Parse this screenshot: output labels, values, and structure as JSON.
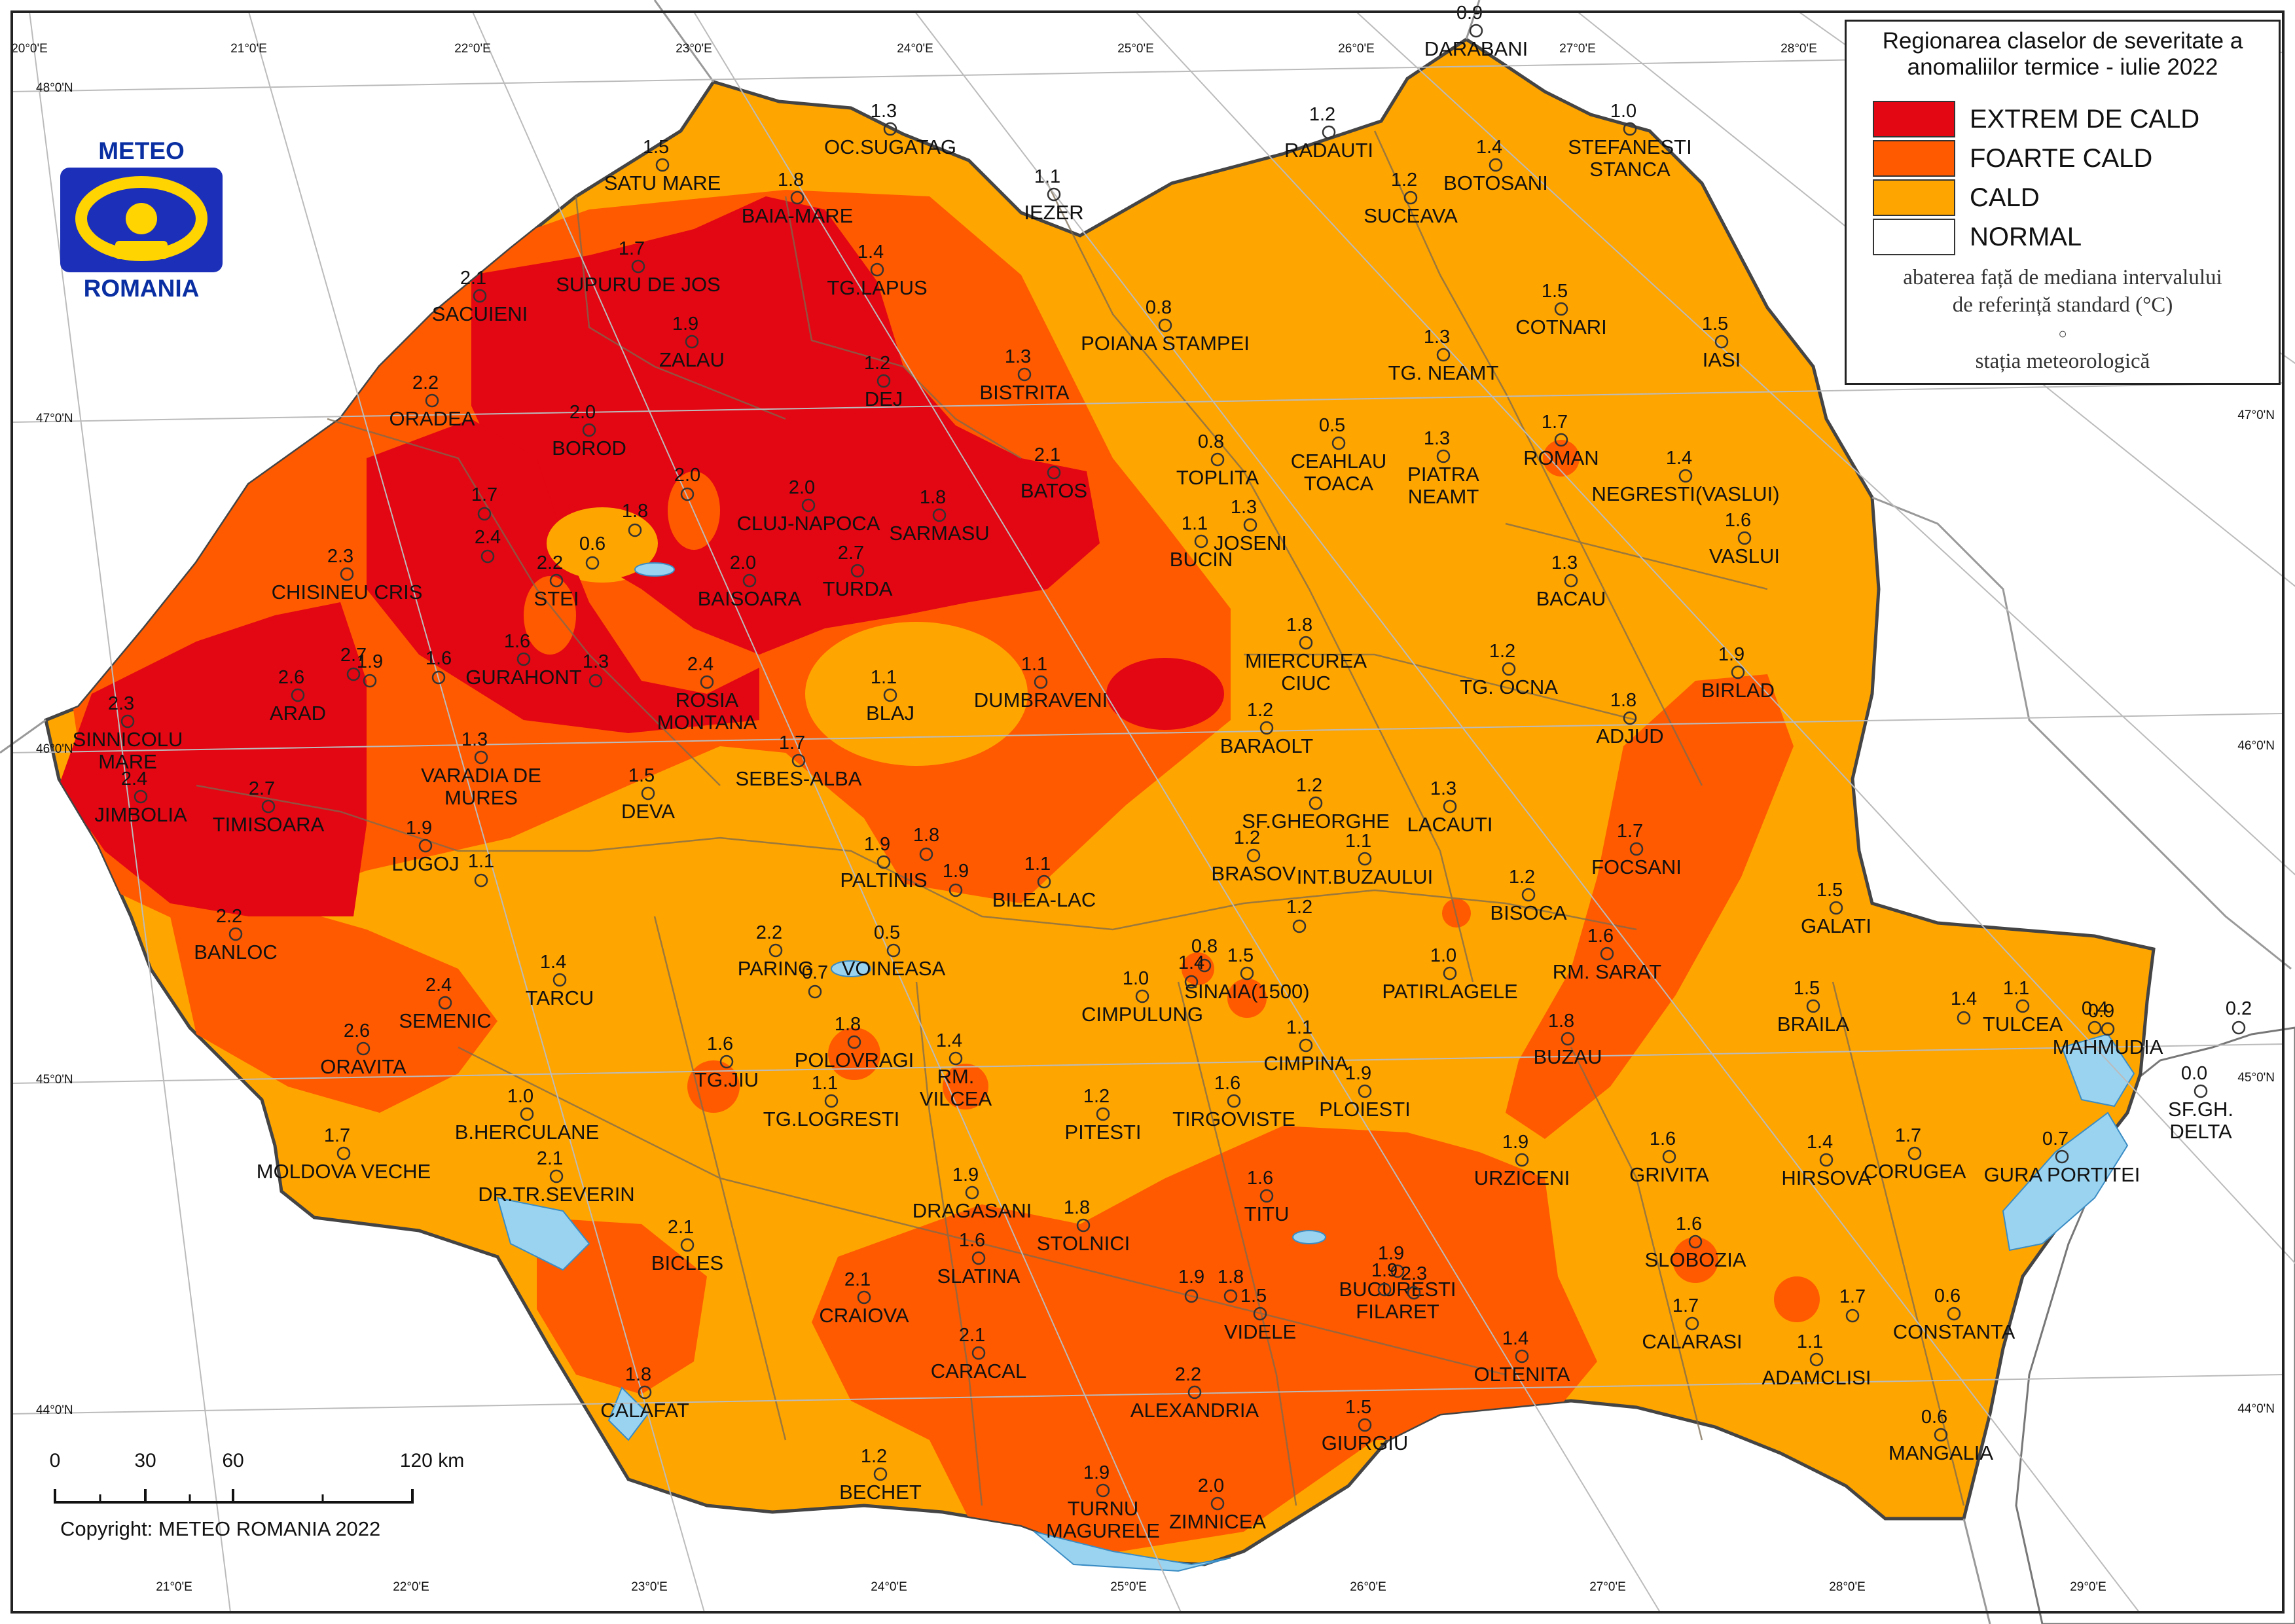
{
  "legend": {
    "title_line1": "Regionarea claselor de severitate a",
    "title_line2": "anomaliilor termice - iulie 2022",
    "classes": [
      {
        "label": "EXTREM DE CALD",
        "color": "#e30613"
      },
      {
        "label": "FOARTE CALD",
        "color": "#ff5a00"
      },
      {
        "label": "CALD",
        "color": "#ffa500"
      },
      {
        "label": "NORMAL",
        "color": "#ffffff"
      }
    ],
    "note_line1": "abaterea față de mediana intervalului",
    "note_line2": "de referință standard (°C)",
    "station_symbol": "○",
    "station_label": "stația meteorologică"
  },
  "logo": {
    "top": "METEO",
    "bottom": "ROMANIA",
    "icon": "meteo-romania-logo-icon"
  },
  "scale": {
    "ticks": [
      "0",
      "30",
      "60",
      "120 km"
    ]
  },
  "copyright": "Copyright: METEO ROMANIA 2022",
  "graticule": {
    "top": [
      "20°0'E",
      "21°0'E",
      "22°0'E",
      "23°0'E",
      "24°0'E",
      "25°0'E",
      "26°0'E",
      "27°0'E",
      "28°0'E"
    ],
    "bottom": [
      "21°0'E",
      "22°0'E",
      "23°0'E",
      "24°0'E",
      "25°0'E",
      "26°0'E",
      "27°0'E",
      "28°0'E",
      "29°0'E"
    ],
    "left": [
      "48°0'N",
      "47°0'N",
      "46°0'N",
      "45°0'N",
      "44°0'N"
    ],
    "right": [
      "47°0'N",
      "46°0'N",
      "45°0'N",
      "44°0'N"
    ]
  },
  "stations": [
    {
      "name": "DARABANI",
      "value": "0.9"
    },
    {
      "name": "STEFANESTI STANCA",
      "value": "1.0"
    },
    {
      "name": "RADAUTI",
      "value": "1.2"
    },
    {
      "name": "BOTOSANI",
      "value": "1.4"
    },
    {
      "name": "SUCEAVA",
      "value": "1.2"
    },
    {
      "name": "IEZER",
      "value": "1.1"
    },
    {
      "name": "OC.SUGATAG",
      "value": "1.3"
    },
    {
      "name": "SATU MARE",
      "value": "1.5"
    },
    {
      "name": "BAIA-MARE",
      "value": "1.8"
    },
    {
      "name": "SUPURU DE JOS",
      "value": "1.7"
    },
    {
      "name": "TG.LAPUS",
      "value": "1.4"
    },
    {
      "name": "SACUIENI",
      "value": "2.1"
    },
    {
      "name": "ZALAU",
      "value": "1.9"
    },
    {
      "name": "COTNARI",
      "value": "1.5"
    },
    {
      "name": "IASI",
      "value": "1.5"
    },
    {
      "name": "POIANA STAMPEI",
      "value": "0.8"
    },
    {
      "name": "TG. NEAMT",
      "value": "1.3"
    },
    {
      "name": "ORADEA",
      "value": "2.2"
    },
    {
      "name": "DEJ",
      "value": "1.2"
    },
    {
      "name": "BISTRITA",
      "value": "1.3"
    },
    {
      "name": "BOROD",
      "value": "2.0"
    },
    {
      "name": "TOPLITA",
      "value": "0.8"
    },
    {
      "name": "CEAHLAU TOACA",
      "value": "0.5"
    },
    {
      "name": "PIATRA NEAMT",
      "value": "1.3"
    },
    {
      "name": "ROMAN",
      "value": "1.7"
    },
    {
      "name": "NEGRESTI(VASLUI)",
      "value": "1.4"
    },
    {
      "name": "VASLUI",
      "value": "1.6"
    },
    {
      "name": "BATOS",
      "value": "2.1"
    },
    {
      "name": "CLUJ-NAPOCA",
      "value": "2.0"
    },
    {
      "name": "SARMASU",
      "value": "1.8"
    },
    {
      "name": "BUCIN",
      "value": "1.1"
    },
    {
      "name": "JOSENI",
      "value": "1.3"
    },
    {
      "name": "TURDA",
      "value": "2.7"
    },
    {
      "name": "BAISOARA",
      "value": "2.0"
    },
    {
      "name": "STEI",
      "value": "2.2"
    },
    {
      "name": "CHISINEU CRIS",
      "value": "2.3"
    },
    {
      "name": "BACAU",
      "value": "1.3"
    },
    {
      "name": "MIERCUREA CIUC",
      "value": "1.8"
    },
    {
      "name": "TG. OCNA",
      "value": "1.2"
    },
    {
      "name": "BIRLAD",
      "value": "1.9"
    },
    {
      "name": "ADJUD",
      "value": "1.8"
    },
    {
      "name": "GURAHONT",
      "value": "1.6"
    },
    {
      "name": "ROSIA MONTANA",
      "value": "2.4"
    },
    {
      "name": "DUMBRAVENI",
      "value": "1.1"
    },
    {
      "name": "BLAJ",
      "value": "1.1"
    },
    {
      "name": "SINNICOLU MARE",
      "value": "2.3"
    },
    {
      "name": "ARAD",
      "value": "2.6"
    },
    {
      "name": "BARAOLT",
      "value": "1.2"
    },
    {
      "name": "SEBES-ALBA",
      "value": "1.7"
    },
    {
      "name": "VARADIA DE MURES",
      "value": "1.3"
    },
    {
      "name": "JIMBOLIA",
      "value": "2.4"
    },
    {
      "name": "TIMISOARA",
      "value": "2.7"
    },
    {
      "name": "DEVA",
      "value": "1.5"
    },
    {
      "name": "SF.GHEORGHE",
      "value": "1.2"
    },
    {
      "name": "LACAUTI",
      "value": "1.3"
    },
    {
      "name": "LUGOJ",
      "value": "1.9"
    },
    {
      "name": "BRASOV",
      "value": "1.2"
    },
    {
      "name": "INT.BUZAULUI",
      "value": "1.1"
    },
    {
      "name": "FOCSANI",
      "value": "1.7"
    },
    {
      "name": "PALTINIS",
      "value": "1.9"
    },
    {
      "name": "BILEA-LAC",
      "value": "1.1"
    },
    {
      "name": "BISOCA",
      "value": "1.2"
    },
    {
      "name": "GALATI",
      "value": "1.5"
    },
    {
      "name": "BANLOC",
      "value": "2.2"
    },
    {
      "name": "PARING",
      "value": "2.2"
    },
    {
      "name": "VOINEASA",
      "value": "0.5"
    },
    {
      "name": "SINAIA(1500)",
      "value": "1.5"
    },
    {
      "name": "PATIRLAGELE",
      "value": "1.0"
    },
    {
      "name": "RM. SARAT",
      "value": "1.6"
    },
    {
      "name": "TARCU",
      "value": "1.4"
    },
    {
      "name": "SEMENIC",
      "value": "2.4"
    },
    {
      "name": "CIMPULUNG",
      "value": "1.0"
    },
    {
      "name": "BRAILA",
      "value": "1.5"
    },
    {
      "name": "TULCEA",
      "value": "1.1"
    },
    {
      "name": "MAHMUDIA",
      "value": "0.9"
    },
    {
      "name": "ORAVITA",
      "value": "2.6"
    },
    {
      "name": "POLOVRAGI",
      "value": "1.8"
    },
    {
      "name": "RM. VILCEA",
      "value": "1.4"
    },
    {
      "name": "CIMPINA",
      "value": "1.1"
    },
    {
      "name": "BUZAU",
      "value": "1.8"
    },
    {
      "name": "SF.GH. DELTA",
      "value": "0.0"
    },
    {
      "name": "TG.JIU",
      "value": "1.6"
    },
    {
      "name": "TG.LOGRESTI",
      "value": "1.1"
    },
    {
      "name": "B.HERCULANE",
      "value": "1.0"
    },
    {
      "name": "TIRGOVISTE",
      "value": "1.6"
    },
    {
      "name": "PLOIESTI",
      "value": "1.9"
    },
    {
      "name": "PITESTI",
      "value": "1.2"
    },
    {
      "name": "MOLDOVA VECHE",
      "value": "1.7"
    },
    {
      "name": "DR.TR.SEVERIN",
      "value": "2.1"
    },
    {
      "name": "URZICENI",
      "value": "1.9"
    },
    {
      "name": "GRIVITA",
      "value": "1.6"
    },
    {
      "name": "HIRSOVA",
      "value": "1.4"
    },
    {
      "name": "CORUGEA",
      "value": "1.7"
    },
    {
      "name": "GURA PORTITEI",
      "value": "0.7"
    },
    {
      "name": "DRAGASANI",
      "value": "1.9"
    },
    {
      "name": "STOLNICI",
      "value": "1.8"
    },
    {
      "name": "TITU",
      "value": "1.6"
    },
    {
      "name": "BICLES",
      "value": "2.1"
    },
    {
      "name": "SLATINA",
      "value": "1.6"
    },
    {
      "name": "SLOBOZIA",
      "value": "1.6"
    },
    {
      "name": "BUCURESTI FILARET",
      "value": "1.9"
    },
    {
      "name": "CRAIOVA",
      "value": "2.1"
    },
    {
      "name": "VIDELE",
      "value": "1.5"
    },
    {
      "name": "CALARASI",
      "value": "1.7"
    },
    {
      "name": "CONSTANTA",
      "value": "0.6"
    },
    {
      "name": "CARACAL",
      "value": "2.1"
    },
    {
      "name": "OLTENITA",
      "value": "1.4"
    },
    {
      "name": "ADAMCLISI",
      "value": "1.1"
    },
    {
      "name": "CALAFAT",
      "value": "1.8"
    },
    {
      "name": "ALEXANDRIA",
      "value": "2.2"
    },
    {
      "name": "GIURGIU",
      "value": "1.5"
    },
    {
      "name": "MANGALIA",
      "value": "0.6"
    },
    {
      "name": "BECHET",
      "value": "1.2"
    },
    {
      "name": "TURNU MAGURELE",
      "value": "1.9"
    },
    {
      "name": "ZIMNICEA",
      "value": "2.0"
    }
  ],
  "extra_values": [
    "0.6",
    "1.8",
    "2.0",
    "1.7",
    "2.4",
    "2.7",
    "1.9",
    "1.6",
    "1.1",
    "1.3",
    "1.8",
    "1.9",
    "0.8",
    "0.7",
    "1.4",
    "1.2",
    "2.3",
    "1.9",
    "1.7",
    "1.4",
    "0.4",
    "0.2",
    "1.9",
    "1.8"
  ]
}
